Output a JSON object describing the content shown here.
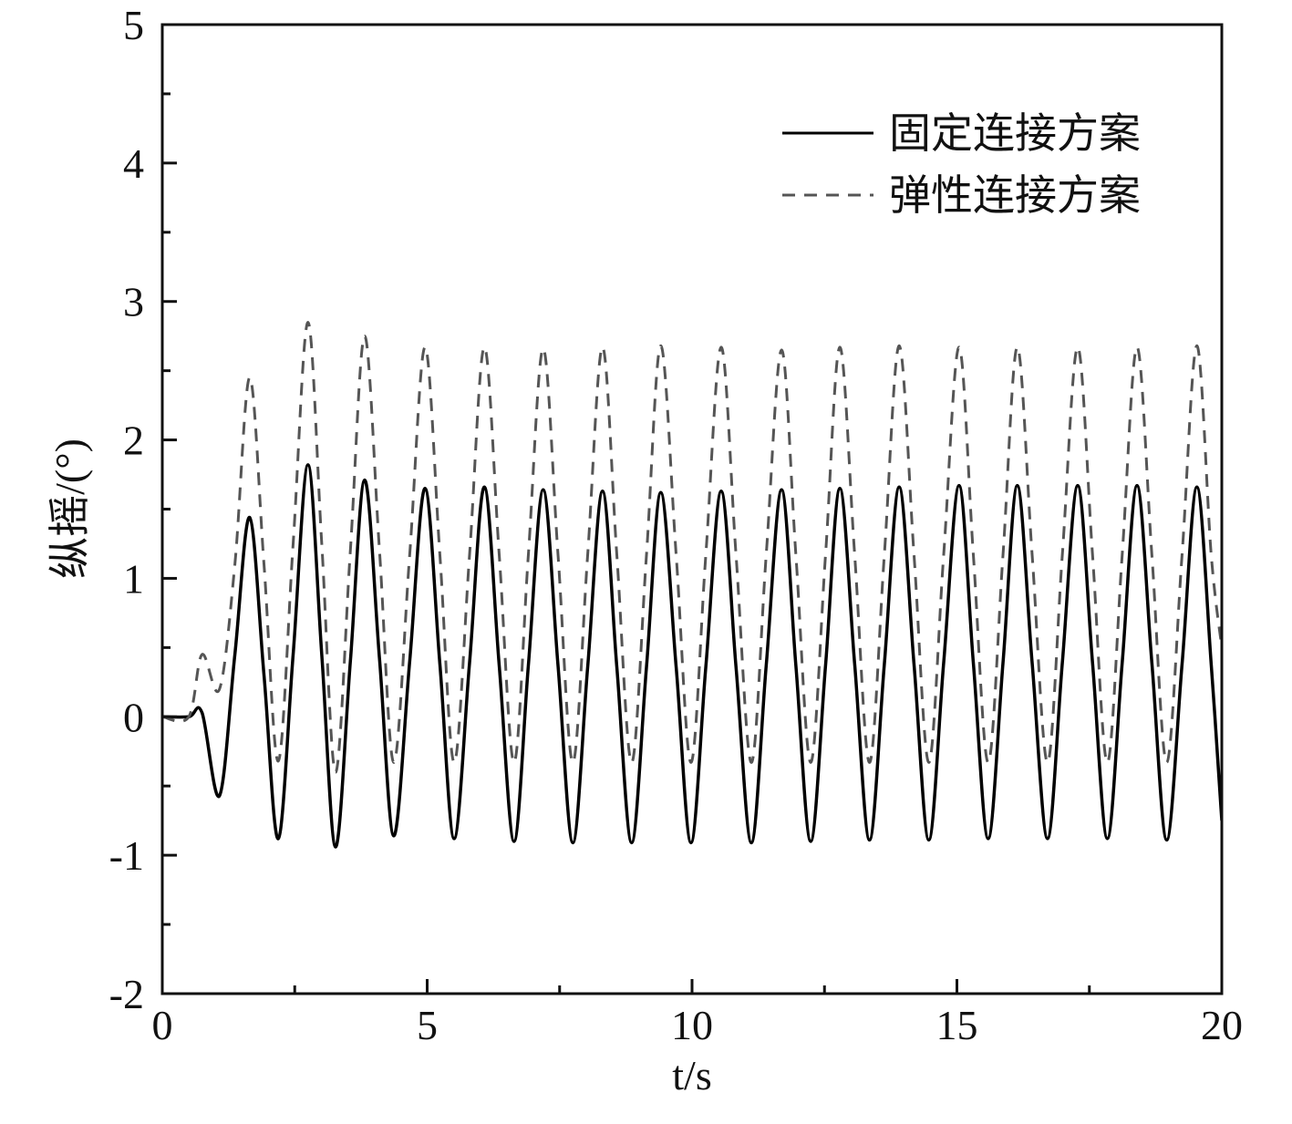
{
  "chart_data": {
    "type": "line",
    "xlabel": "t/s",
    "ylabel": "纵摇/(°)",
    "xlim": [
      0,
      20
    ],
    "ylim": [
      -2,
      5
    ],
    "xticks": [
      0,
      5,
      10,
      15,
      20
    ],
    "yticks": [
      -2,
      -1,
      0,
      1,
      2,
      3,
      4,
      5
    ],
    "xminorticks": [
      2.5,
      7.5,
      12.5,
      17.5
    ],
    "yminorticks": [
      -1.5,
      -0.5,
      0.5,
      1.5,
      2.5,
      3.5,
      4.5
    ],
    "legend": "upper right",
    "x": [
      0,
      0.5,
      0.75,
      1.08,
      1.37,
      1.65,
      1.92,
      2.19,
      2.47,
      2.75,
      3.01,
      3.27,
      3.55,
      3.82,
      4.1,
      4.37,
      4.67,
      4.96,
      5.24,
      5.51,
      5.8,
      6.08,
      6.36,
      6.64,
      6.91,
      7.19,
      7.47,
      7.75,
      8.03,
      8.31,
      8.58,
      8.86,
      9.14,
      9.41,
      9.7,
      9.98,
      10.26,
      10.55,
      10.83,
      11.12,
      11.4,
      11.69,
      11.96,
      12.24,
      12.52,
      12.79,
      13.07,
      13.35,
      13.63,
      13.91,
      14.19,
      14.47,
      14.75,
      15.04,
      15.31,
      15.59,
      15.87,
      16.14,
      16.42,
      16.71,
      16.99,
      17.28,
      17.56,
      17.84,
      18.12,
      18.4,
      18.68,
      18.96,
      19.25,
      19.53,
      19.8,
      20
    ],
    "series": [
      {
        "name": "固定连接方案",
        "color": "#000000",
        "dash": "solid",
        "values": [
          0,
          0,
          0.03,
          -0.57,
          0.45,
          1.44,
          0.3,
          -0.88,
          0.45,
          1.82,
          0.45,
          -0.94,
          0.4,
          1.71,
          0.42,
          -0.86,
          0.4,
          1.65,
          0.38,
          -0.88,
          0.39,
          1.66,
          0.37,
          -0.9,
          0.37,
          1.64,
          0.37,
          -0.91,
          0.36,
          1.63,
          0.36,
          -0.91,
          0.36,
          1.62,
          0.36,
          -0.91,
          0.36,
          1.63,
          0.36,
          -0.91,
          0.37,
          1.64,
          0.37,
          -0.9,
          0.37,
          1.65,
          0.38,
          -0.89,
          0.38,
          1.66,
          0.38,
          -0.89,
          0.39,
          1.67,
          0.39,
          -0.88,
          0.39,
          1.67,
          0.39,
          -0.88,
          0.39,
          1.67,
          0.39,
          -0.88,
          0.39,
          1.67,
          0.39,
          -0.89,
          0.38,
          1.66,
          0.38,
          -0.75
        ]
      },
      {
        "name": "弹性连接方案",
        "color": "#555555",
        "dash": "dashed",
        "values": [
          0,
          0,
          0.45,
          0.2,
          1.1,
          2.45,
          1.1,
          -0.32,
          1.25,
          2.85,
          1.25,
          -0.4,
          1.2,
          2.75,
          1.2,
          -0.33,
          1.17,
          2.67,
          1.17,
          -0.33,
          1.17,
          2.67,
          1.17,
          -0.33,
          1.17,
          2.66,
          1.17,
          -0.33,
          1.17,
          2.67,
          1.17,
          -0.33,
          1.17,
          2.68,
          1.17,
          -0.33,
          1.17,
          2.67,
          1.17,
          -0.33,
          1.17,
          2.65,
          1.17,
          -0.33,
          1.17,
          2.67,
          1.17,
          -0.33,
          1.17,
          2.68,
          1.17,
          -0.33,
          1.17,
          2.67,
          1.17,
          -0.33,
          1.17,
          2.67,
          1.17,
          -0.33,
          1.17,
          2.67,
          1.17,
          -0.33,
          1.17,
          2.67,
          1.17,
          -0.33,
          1.17,
          2.68,
          1.17,
          0.5
        ]
      }
    ]
  }
}
